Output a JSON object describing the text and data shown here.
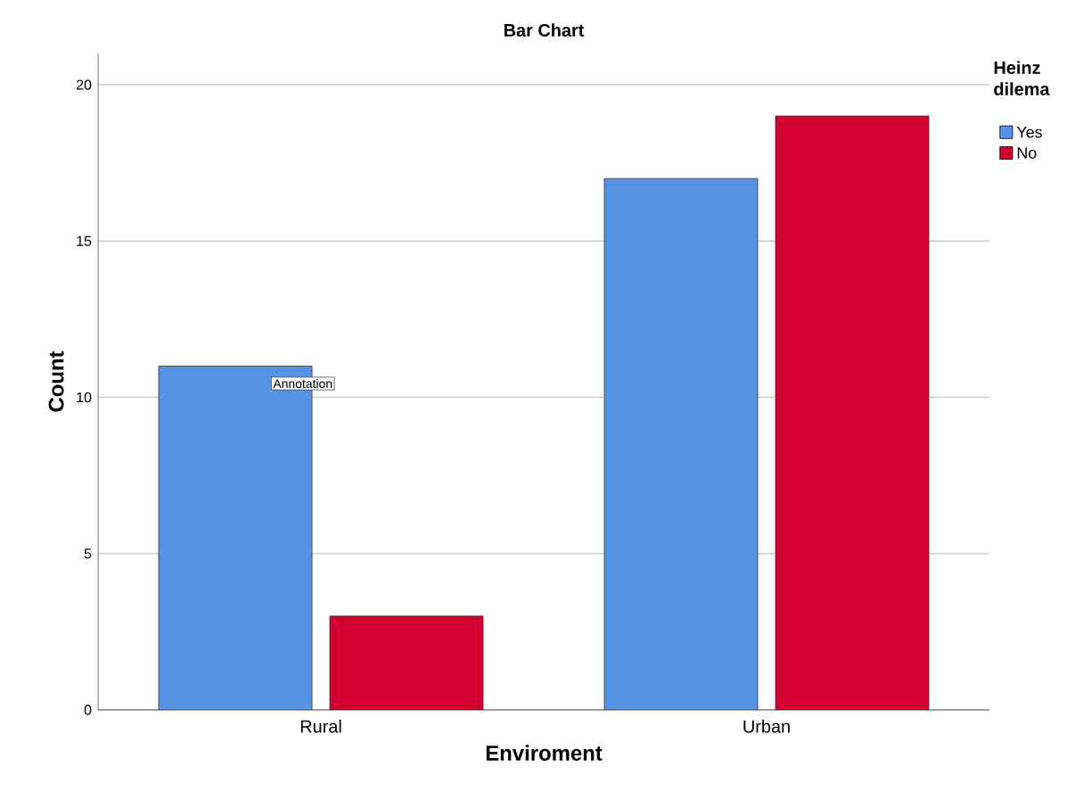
{
  "chart_data": {
    "type": "bar",
    "title": "Bar Chart",
    "xlabel": "Enviroment",
    "ylabel": "Count",
    "legend_title": "Heinz dilema",
    "categories": [
      "Rural",
      "Urban"
    ],
    "series": [
      {
        "name": "Yes",
        "color": "#5793e5",
        "values": [
          11,
          17
        ]
      },
      {
        "name": "No",
        "color": "#d3002f",
        "values": [
          3,
          19
        ]
      }
    ],
    "ylim": [
      0,
      21
    ],
    "yticks": [
      0,
      5,
      10,
      15,
      20
    ],
    "grid": "y",
    "legend": "top right",
    "annotations": [
      "Annotation"
    ]
  }
}
